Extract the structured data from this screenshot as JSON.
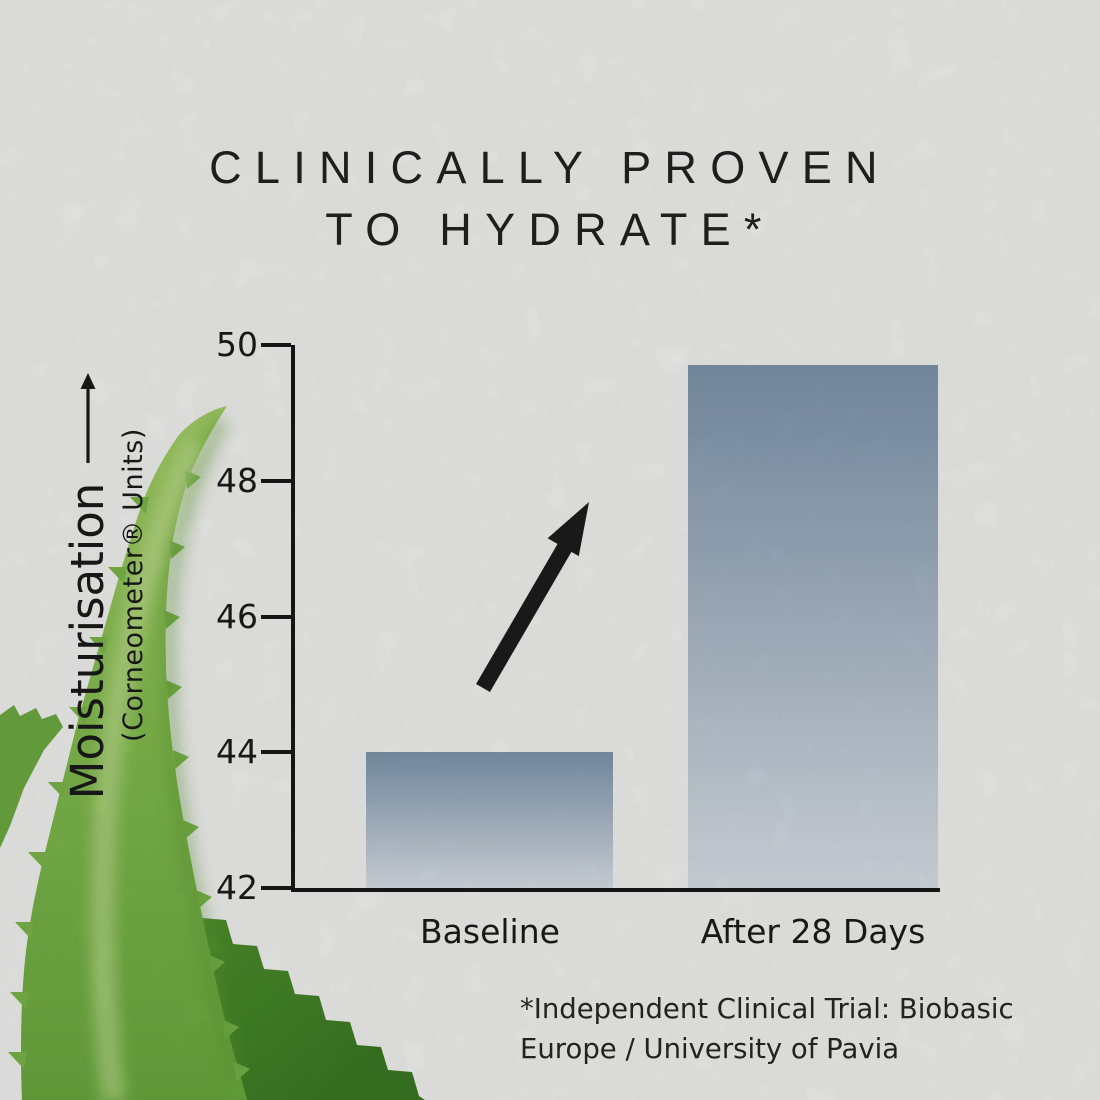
{
  "title": {
    "line1": "CLINICALLY PROVEN",
    "line2": "TO HYDRATE*"
  },
  "chart_data": {
    "type": "bar",
    "categories": [
      "Baseline",
      "After 28 Days"
    ],
    "values": [
      44,
      49.7
    ],
    "ylabel": "Moisturisation",
    "ylabel_sub": "(Corneometer® Units)",
    "yticks": [
      "50",
      "48",
      "46",
      "44",
      "42"
    ],
    "ylim": [
      42,
      50
    ],
    "grid": false,
    "annotation": "upward trend arrow between bars",
    "title": "Clinically proven to hydrate"
  },
  "footnote": {
    "line1": "*Independent Clinical Trial: Biobasic",
    "line2": "Europe / University of Pavia"
  },
  "colors": {
    "background": "#f6f6f4",
    "text": "#222222",
    "axis": "#191919",
    "bar_top": "#7f96ad",
    "bar_bottom": "#dde3ea",
    "arrow": "#1d1d1d",
    "leaf_bright": "#85bf50",
    "leaf_dark": "#47892c"
  },
  "decor": {
    "leaf_alt": "aloe vera leaves",
    "texture": "paper grain"
  }
}
